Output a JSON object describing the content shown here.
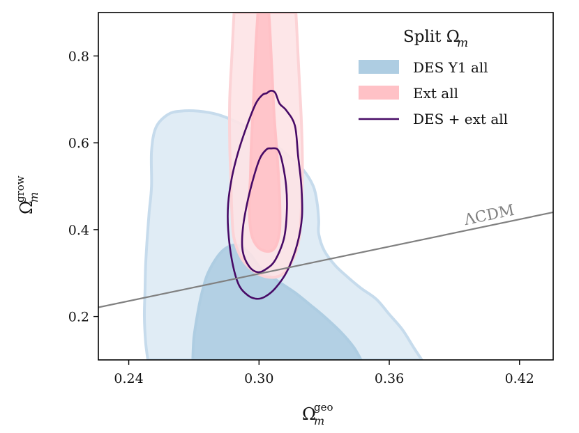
{
  "chart_data": {
    "type": "contour",
    "xlabel": "Ω_m^geo",
    "ylabel": "Ω_m^grow",
    "xlim": [
      0.226,
      0.4355
    ],
    "ylim": [
      0.1,
      0.9
    ],
    "xticks": [
      "0.24",
      "0.30",
      "0.36",
      "0.42"
    ],
    "yticks": [
      "0.2",
      "0.4",
      "0.6",
      "0.8"
    ],
    "legend": {
      "title": "Split Ω_m",
      "position": "top-right",
      "entries": [
        {
          "label": "DES Y1 all",
          "style": "fill",
          "color": "#a7c6dd"
        },
        {
          "label": "Ext all",
          "style": "fill",
          "color": "#ffc0c4"
        },
        {
          "label": "DES + ext all",
          "style": "line",
          "color": "#470a66"
        }
      ]
    },
    "reference_line": {
      "label": "ΛCDM",
      "color": "#808080",
      "x": [
        0.226,
        0.4355
      ],
      "y": [
        0.221,
        0.44
      ]
    },
    "series": [
      {
        "name": "DES Y1 all",
        "level": "95%",
        "fill": "#ddeaf4",
        "edge": "#c6dbec",
        "points": [
          [
            0.2488,
            0.1
          ],
          [
            0.2478,
            0.14
          ],
          [
            0.2472,
            0.2
          ],
          [
            0.2475,
            0.26
          ],
          [
            0.2478,
            0.32
          ],
          [
            0.2485,
            0.38
          ],
          [
            0.2494,
            0.44
          ],
          [
            0.2505,
            0.5
          ],
          [
            0.2505,
            0.58
          ],
          [
            0.2525,
            0.635
          ],
          [
            0.258,
            0.665
          ],
          [
            0.264,
            0.673
          ],
          [
            0.272,
            0.673
          ],
          [
            0.281,
            0.665
          ],
          [
            0.291,
            0.645
          ],
          [
            0.302,
            0.615
          ],
          [
            0.312,
            0.577
          ],
          [
            0.32,
            0.54
          ],
          [
            0.325,
            0.5
          ],
          [
            0.3268,
            0.46
          ],
          [
            0.3275,
            0.42
          ],
          [
            0.3275,
            0.39
          ],
          [
            0.33,
            0.352
          ],
          [
            0.335,
            0.318
          ],
          [
            0.341,
            0.29
          ],
          [
            0.347,
            0.265
          ],
          [
            0.354,
            0.24
          ],
          [
            0.36,
            0.205
          ],
          [
            0.366,
            0.17
          ],
          [
            0.3713,
            0.128
          ],
          [
            0.375,
            0.1
          ]
        ]
      },
      {
        "name": "DES Y1 all",
        "level": "68%",
        "fill": "#aecde2",
        "edge": "#aecde2",
        "points": [
          [
            0.2695,
            0.1
          ],
          [
            0.27,
            0.15
          ],
          [
            0.2715,
            0.2
          ],
          [
            0.2735,
            0.25
          ],
          [
            0.2765,
            0.3
          ],
          [
            0.282,
            0.345
          ],
          [
            0.287,
            0.363
          ],
          [
            0.2915,
            0.362
          ],
          [
            0.296,
            0.343
          ],
          [
            0.301,
            0.31
          ],
          [
            0.3085,
            0.282
          ],
          [
            0.3165,
            0.255
          ],
          [
            0.324,
            0.225
          ],
          [
            0.33,
            0.2
          ],
          [
            0.3375,
            0.165
          ],
          [
            0.3435,
            0.13
          ],
          [
            0.347,
            0.1
          ]
        ]
      },
      {
        "name": "Ext all",
        "level": "95%",
        "fill": "#fde3e5",
        "edge": "#fcd3d6",
        "points": [
          [
            0.2885,
            0.9
          ],
          [
            0.2875,
            0.8
          ],
          [
            0.2865,
            0.7
          ],
          [
            0.2865,
            0.6
          ],
          [
            0.287,
            0.52
          ],
          [
            0.2875,
            0.44
          ],
          [
            0.2885,
            0.38
          ],
          [
            0.2925,
            0.33
          ],
          [
            0.299,
            0.3
          ],
          [
            0.306,
            0.29
          ],
          [
            0.3115,
            0.3
          ],
          [
            0.3155,
            0.33
          ],
          [
            0.3185,
            0.38
          ],
          [
            0.3195,
            0.45
          ],
          [
            0.32,
            0.55
          ],
          [
            0.3195,
            0.65
          ],
          [
            0.3185,
            0.75
          ],
          [
            0.3175,
            0.85
          ],
          [
            0.317,
            0.9
          ]
        ]
      },
      {
        "name": "Ext all",
        "level": "68%",
        "fill": "#ffc1c6",
        "edge": "#ffc1c6",
        "points": [
          [
            0.2995,
            0.9
          ],
          [
            0.2985,
            0.82
          ],
          [
            0.2975,
            0.7
          ],
          [
            0.2965,
            0.6
          ],
          [
            0.296,
            0.52
          ],
          [
            0.2955,
            0.45
          ],
          [
            0.2965,
            0.39
          ],
          [
            0.2995,
            0.36
          ],
          [
            0.304,
            0.35
          ],
          [
            0.3075,
            0.36
          ],
          [
            0.3095,
            0.4
          ],
          [
            0.3095,
            0.47
          ],
          [
            0.3085,
            0.56
          ],
          [
            0.307,
            0.66
          ],
          [
            0.306,
            0.76
          ],
          [
            0.305,
            0.86
          ],
          [
            0.3045,
            0.9
          ]
        ]
      },
      {
        "name": "DES + ext all",
        "level": "95%",
        "stroke": "#470a66",
        "points": [
          [
            0.3035,
            0.714
          ],
          [
            0.3015,
            0.71
          ],
          [
            0.2985,
            0.69
          ],
          [
            0.2945,
            0.64
          ],
          [
            0.2905,
            0.58
          ],
          [
            0.2875,
            0.52
          ],
          [
            0.2858,
            0.46
          ],
          [
            0.2858,
            0.4
          ],
          [
            0.2875,
            0.33
          ],
          [
            0.2905,
            0.275
          ],
          [
            0.2945,
            0.25
          ],
          [
            0.2985,
            0.241
          ],
          [
            0.3025,
            0.245
          ],
          [
            0.3075,
            0.265
          ],
          [
            0.313,
            0.305
          ],
          [
            0.3175,
            0.365
          ],
          [
            0.3198,
            0.43
          ],
          [
            0.3195,
            0.5
          ],
          [
            0.318,
            0.57
          ],
          [
            0.3165,
            0.64
          ],
          [
            0.3125,
            0.675
          ],
          [
            0.3095,
            0.69
          ],
          [
            0.3075,
            0.715
          ],
          [
            0.3055,
            0.72
          ],
          [
            0.3035,
            0.714
          ]
        ]
      },
      {
        "name": "DES + ext all",
        "level": "68%",
        "stroke": "#470a66",
        "points": [
          [
            0.3055,
            0.587
          ],
          [
            0.3035,
            0.585
          ],
          [
            0.3005,
            0.565
          ],
          [
            0.2975,
            0.52
          ],
          [
            0.2945,
            0.46
          ],
          [
            0.2925,
            0.4
          ],
          [
            0.2925,
            0.35
          ],
          [
            0.2955,
            0.315
          ],
          [
            0.2995,
            0.302
          ],
          [
            0.3035,
            0.31
          ],
          [
            0.3075,
            0.33
          ],
          [
            0.3115,
            0.38
          ],
          [
            0.3128,
            0.44
          ],
          [
            0.3125,
            0.5
          ],
          [
            0.3105,
            0.56
          ],
          [
            0.3085,
            0.585
          ],
          [
            0.3055,
            0.587
          ]
        ]
      }
    ]
  }
}
